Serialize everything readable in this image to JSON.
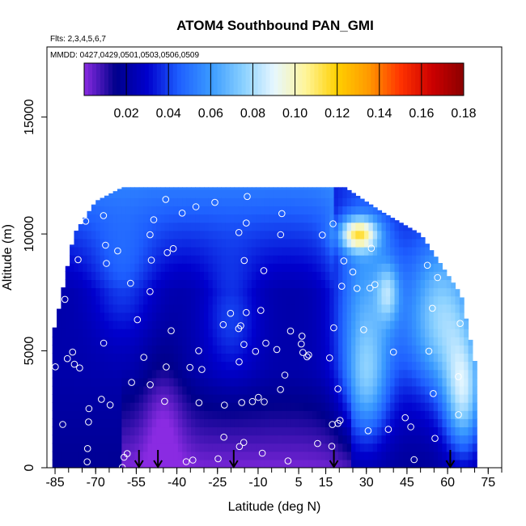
{
  "chart_data": {
    "type": "heatmap",
    "title": "ATOM4 Southbound PAN_GMI",
    "flights_note": "Flts: 2,3,4,5,6,7",
    "dates_note": "MMDD: 0427,0429,0501,0503,0506,0509",
    "xlabel": "Latitude (deg N)",
    "ylabel": "Altitude (m)",
    "xlim": [
      -88,
      80
    ],
    "ylim": [
      0,
      18000
    ],
    "x_ticks": [
      -85,
      -70,
      -55,
      -40,
      -25,
      -10,
      5,
      15,
      30,
      45,
      60,
      75
    ],
    "y_ticks": [
      0,
      5000,
      10000,
      15000
    ],
    "x_tick_labels": [
      "-85",
      "-70",
      "-55",
      "-40",
      "-25",
      "-10",
      "5",
      "15",
      "30",
      "45",
      "60",
      "75"
    ],
    "y_tick_labels": [
      "0",
      "5000",
      "10000",
      "15000"
    ],
    "colorbar": {
      "min": 0.0,
      "max": 0.18,
      "tick_values": [
        0.02,
        0.04,
        0.06,
        0.08,
        0.1,
        0.12,
        0.14,
        0.16,
        0.18
      ],
      "tick_labels": [
        "0.02",
        "0.04",
        "0.06",
        "0.08",
        "0.10",
        "0.12",
        "0.14",
        "0.16",
        "0.18"
      ],
      "colors": [
        "#8a2be2",
        "#00008b",
        "#0000cd",
        "#1e5fff",
        "#3a9aff",
        "#87cfff",
        "#e6f7ff",
        "#fff59a",
        "#ffd000",
        "#ff9900",
        "#ff3300",
        "#cc0000",
        "#8b0000"
      ]
    },
    "profile_latitudes": [
      -54,
      -47,
      -19,
      18,
      61
    ],
    "grid": false,
    "legend": "colorbar-top-inside"
  }
}
